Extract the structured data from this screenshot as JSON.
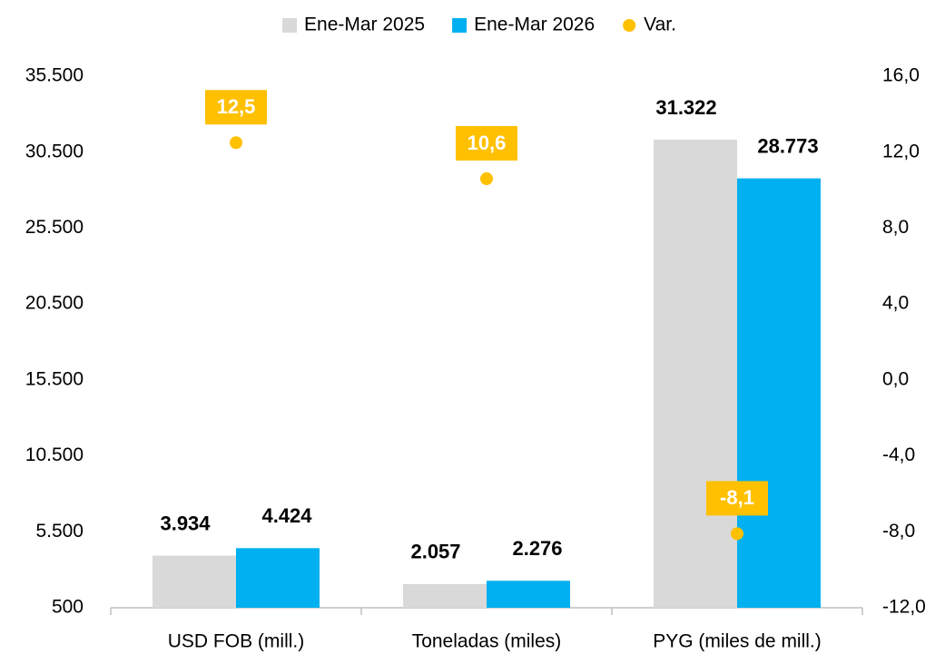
{
  "chart_data": {
    "type": "bar",
    "categories": [
      "USD FOB (mill.)",
      "Toneladas (miles)",
      "PYG (miles de mill.)"
    ],
    "series": [
      {
        "name": "Ene-Mar 2025",
        "color": "#d9d9d9",
        "values": [
          3934,
          2057,
          31322
        ],
        "value_labels": [
          "3.934",
          "2.057",
          "31.322"
        ]
      },
      {
        "name": "Ene-Mar 2026",
        "color": "#00b0f0",
        "values": [
          4424,
          2276,
          28773
        ],
        "value_labels": [
          "4.424",
          "2.276",
          "28.773"
        ]
      },
      {
        "name": "Var.",
        "color": "#ffc000",
        "type": "scatter",
        "axis": "y2",
        "values": [
          12.5,
          10.6,
          -8.1
        ],
        "value_labels": [
          "12,5",
          "10,6",
          "-8,1"
        ]
      }
    ],
    "ylim": [
      500,
      35500
    ],
    "yticks": [
      {
        "value": 500,
        "label": "500"
      },
      {
        "value": 5500,
        "label": "5.500"
      },
      {
        "value": 10500,
        "label": "10.500"
      },
      {
        "value": 15500,
        "label": "15.500"
      },
      {
        "value": 20500,
        "label": "20.500"
      },
      {
        "value": 25500,
        "label": "25.500"
      },
      {
        "value": 30500,
        "label": "30.500"
      },
      {
        "value": 35500,
        "label": "35.500"
      }
    ],
    "y2lim": [
      -12,
      16
    ],
    "y2ticks": [
      {
        "value": -12,
        "label": "-12,0"
      },
      {
        "value": -8,
        "label": "-8,0"
      },
      {
        "value": -4,
        "label": "-4,0"
      },
      {
        "value": 0,
        "label": "0,0"
      },
      {
        "value": 4,
        "label": "4,0"
      },
      {
        "value": 8,
        "label": "8,0"
      },
      {
        "value": 12,
        "label": "12,0"
      },
      {
        "value": 16,
        "label": "16,0"
      }
    ],
    "legend": "top",
    "grid": false
  }
}
